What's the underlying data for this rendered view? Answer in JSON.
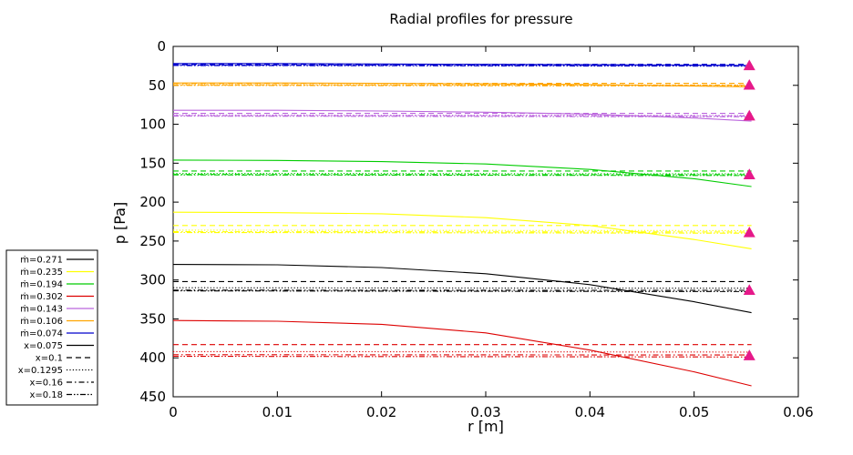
{
  "chart_data": {
    "type": "line",
    "title": "Radial profiles for pressure",
    "xlabel": "r [m]",
    "ylabel": "p [Pa]",
    "xlim": [
      0,
      0.06
    ],
    "ylim": [
      0,
      450
    ],
    "y_inverted": true,
    "x_ticks": [
      "0",
      "0.01",
      "0.02",
      "0.03",
      "0.04",
      "0.05",
      "0.06"
    ],
    "y_ticks": [
      "0",
      "50",
      "100",
      "150",
      "200",
      "250",
      "300",
      "350",
      "400",
      "450"
    ],
    "grid": false,
    "legend_position": "outside-left",
    "legend": [
      {
        "label": "ṁ=0.271",
        "color": "#000000",
        "dash": "solid"
      },
      {
        "label": "ṁ=0.235",
        "color": "#ffff00",
        "dash": "solid"
      },
      {
        "label": "ṁ=0.194",
        "color": "#00cc00",
        "dash": "solid"
      },
      {
        "label": "ṁ=0.302",
        "color": "#dd0000",
        "dash": "solid"
      },
      {
        "label": "ṁ=0.143",
        "color": "#bb66dd",
        "dash": "solid"
      },
      {
        "label": "ṁ=0.106",
        "color": "#ffa500",
        "dash": "solid"
      },
      {
        "label": "ṁ=0.074",
        "color": "#0000cc",
        "dash": "solid"
      },
      {
        "label": "x=0.075",
        "color": "#000000",
        "dash": "solid"
      },
      {
        "label": "x=0.1",
        "color": "#000000",
        "dash": "dashed"
      },
      {
        "label": "x=0.1295",
        "color": "#000000",
        "dash": "dotted"
      },
      {
        "label": "x=0.16",
        "color": "#000000",
        "dash": "dashdot"
      },
      {
        "label": "x=0.18",
        "color": "#000000",
        "dash": "dashdotdot"
      }
    ],
    "mass_flow_groups": [
      {
        "mdot": "ṁ=0.074",
        "color": "#0000cc",
        "x0075": {
          "x": [
            0,
            0.01,
            0.02,
            0.03,
            0.04,
            0.05,
            0.0555
          ],
          "y": [
            22,
            22,
            22.5,
            23,
            23.5,
            24,
            24.5
          ]
        },
        "x01": 23,
        "x01295": 24,
        "x016": 24,
        "x018": 24.5,
        "marker": 24.5
      },
      {
        "mdot": "ṁ=0.106",
        "color": "#ffa500",
        "x0075": {
          "x": [
            0,
            0.01,
            0.02,
            0.03,
            0.04,
            0.05,
            0.0555
          ],
          "y": [
            47,
            47,
            47.5,
            48,
            49,
            51,
            52
          ]
        },
        "x01": 47.5,
        "x01295": 49,
        "x016": 49.5,
        "x018": 50,
        "marker": 49.5
      },
      {
        "mdot": "ṁ=0.143",
        "color": "#bb66dd",
        "x0075": {
          "x": [
            0,
            0.01,
            0.02,
            0.03,
            0.04,
            0.05,
            0.0555
          ],
          "y": [
            82,
            82,
            83,
            84.5,
            87,
            92,
            96
          ]
        },
        "x01": 86,
        "x01295": 88,
        "x016": 89,
        "x018": 89.5,
        "marker": 89
      },
      {
        "mdot": "ṁ=0.194",
        "color": "#00cc00",
        "x0075": {
          "x": [
            0,
            0.01,
            0.02,
            0.03,
            0.04,
            0.05,
            0.0555
          ],
          "y": [
            146,
            146.5,
            148,
            151,
            158,
            170,
            180
          ]
        },
        "x01": 160,
        "x01295": 163,
        "x016": 164.5,
        "x018": 165,
        "marker": 164.5
      },
      {
        "mdot": "ṁ=0.235",
        "color": "#ffff00",
        "x0075": {
          "x": [
            0,
            0.01,
            0.02,
            0.03,
            0.04,
            0.05,
            0.0555
          ],
          "y": [
            213,
            213.5,
            215,
            220,
            230,
            248,
            260
          ]
        },
        "x01": 230,
        "x01295": 236,
        "x016": 238,
        "x018": 239,
        "marker": 239
      },
      {
        "mdot": "ṁ=0.271",
        "color": "#000000",
        "x0075": {
          "x": [
            0,
            0.01,
            0.02,
            0.03,
            0.04,
            0.05,
            0.0555
          ],
          "y": [
            280,
            280.5,
            284,
            292,
            306,
            328,
            342
          ]
        },
        "x01": 302,
        "x01295": 310,
        "x016": 313,
        "x018": 314,
        "marker": 313
      },
      {
        "mdot": "ṁ=0.302",
        "color": "#dd0000",
        "x0075": {
          "x": [
            0,
            0.01,
            0.02,
            0.03,
            0.04,
            0.05,
            0.0555
          ],
          "y": [
            352,
            353,
            357,
            368,
            390,
            418,
            436
          ]
        },
        "x01": 383,
        "x01295": 392,
        "x016": 396,
        "x018": 398,
        "marker": 397
      }
    ],
    "marker_style": {
      "shape": "triangle",
      "color": "#e6198a",
      "x": 0.0553
    }
  }
}
